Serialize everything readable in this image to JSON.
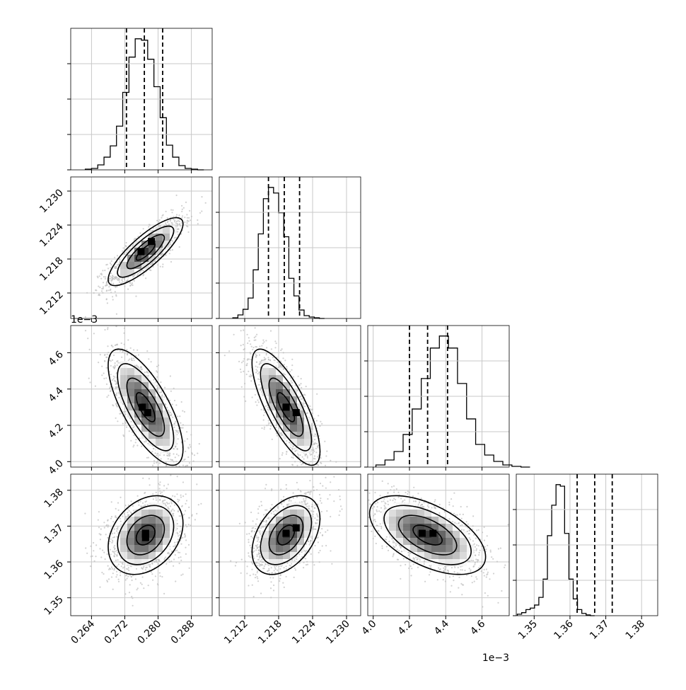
{
  "chart_data": {
    "type": "corner",
    "dimension_count": 4,
    "quantiles_shown": [
      0.16,
      0.5,
      0.84
    ],
    "parameters": [
      {
        "range": [
          0.259,
          0.293
        ],
        "ticks": [
          0.264,
          0.272,
          0.28,
          0.288
        ],
        "tick_labels": [
          "0.264",
          "0.272",
          "0.280",
          "0.288"
        ],
        "offset_label": ""
      },
      {
        "range": [
          1.2075,
          1.2325
        ],
        "ticks": [
          1.212,
          1.218,
          1.224,
          1.23
        ],
        "tick_labels": [
          "1.212",
          "1.218",
          "1.224",
          "1.230"
        ],
        "offset_label": ""
      },
      {
        "range": [
          3.97,
          4.75
        ],
        "ticks": [
          4.0,
          4.2,
          4.4,
          4.6
        ],
        "tick_labels": [
          "4.0",
          "4.2",
          "4.4",
          "4.6"
        ],
        "offset_label": "1e−3"
      },
      {
        "range": [
          1.345,
          1.3845
        ],
        "ticks": [
          1.35,
          1.36,
          1.37,
          1.38
        ],
        "tick_labels": [
          "1.35",
          "1.36",
          "1.37",
          "1.38"
        ],
        "offset_label": ""
      }
    ],
    "histograms": [
      {
        "param": 0,
        "bin_start": 0.2625,
        "bin_width": 0.0015,
        "counts": [
          1,
          2,
          7,
          18,
          34,
          62,
          110,
          160,
          186,
          184,
          157,
          118,
          74,
          35,
          18,
          6,
          2,
          1,
          0
        ],
        "quantiles": [
          0.2724,
          0.2767,
          0.2811
        ]
      },
      {
        "param": 1,
        "bin_start": 1.2099,
        "bin_width": 0.0009,
        "counts": [
          1,
          5,
          13,
          29,
          69,
          120,
          170,
          186,
          178,
          150,
          116,
          57,
          32,
          12,
          4,
          2,
          1,
          0
        ],
        "quantiles": [
          1.2162,
          1.219,
          1.2217
        ]
      },
      {
        "param": 2,
        "bin_start": 4.015,
        "bin_width": 0.05,
        "counts": [
          3,
          10,
          22,
          46,
          82,
          125,
          168,
          185,
          168,
          118,
          68,
          32,
          17,
          8,
          3,
          1,
          0
        ],
        "quantiles": [
          4.2,
          4.3,
          4.41
        ]
      },
      {
        "param": 3,
        "bin_start": 1.3453,
        "bin_width": 0.0012,
        "counts": [
          2,
          4,
          8,
          10,
          14,
          24,
          48,
          105,
          145,
          172,
          170,
          108,
          48,
          22,
          8,
          3,
          1,
          0
        ],
        "quantiles": [
          1.362,
          1.3669,
          1.3718
        ]
      }
    ],
    "joint_panels": [
      {
        "row": 1,
        "col": 0,
        "center": [
          0.277,
          1.2193
        ],
        "sigma": [
          0.0045,
          0.003
        ],
        "rho": 0.82,
        "peak_bins": [
          [
            0.2784,
            1.2211
          ],
          [
            0.2759,
            1.2193
          ]
        ]
      },
      {
        "row": 2,
        "col": 0,
        "center": [
          0.277,
          4.3
        ],
        "sigma": [
          0.0045,
          0.16
        ],
        "rho": -0.72,
        "peak_bins": [
          [
            0.2762,
            4.3
          ],
          [
            0.2775,
            4.27
          ]
        ]
      },
      {
        "row": 2,
        "col": 1,
        "center": [
          1.2193,
          4.3
        ],
        "sigma": [
          0.003,
          0.16
        ],
        "rho": -0.76,
        "peak_bins": [
          [
            1.2193,
            4.3
          ],
          [
            1.2211,
            4.27
          ]
        ]
      },
      {
        "row": 3,
        "col": 0,
        "center": [
          0.277,
          1.3675
        ],
        "sigma": [
          0.0045,
          0.0055
        ],
        "rho": 0.3,
        "peak_bins": [
          [
            0.277,
            1.368
          ],
          [
            0.277,
            1.3668
          ]
        ]
      },
      {
        "row": 3,
        "col": 1,
        "center": [
          1.2193,
          1.3675
        ],
        "sigma": [
          0.003,
          0.0055
        ],
        "rho": 0.42,
        "peak_bins": [
          [
            1.2193,
            1.368
          ],
          [
            1.2211,
            1.3695
          ]
        ]
      },
      {
        "row": 3,
        "col": 2,
        "center": [
          4.3,
          1.3675
        ],
        "sigma": [
          0.16,
          0.0055
        ],
        "rho": -0.55,
        "peak_bins": [
          [
            4.27,
            1.368
          ],
          [
            4.33,
            1.368
          ]
        ]
      }
    ],
    "contour_levels": [
      0.5,
      1.0,
      1.5,
      2.0
    ],
    "grid": true,
    "colors": {
      "contour": "#000000",
      "points": "#bdbdbd",
      "density_dark": "#000000",
      "density_light": "#ffffff",
      "grid": "#c8c8c8"
    }
  }
}
